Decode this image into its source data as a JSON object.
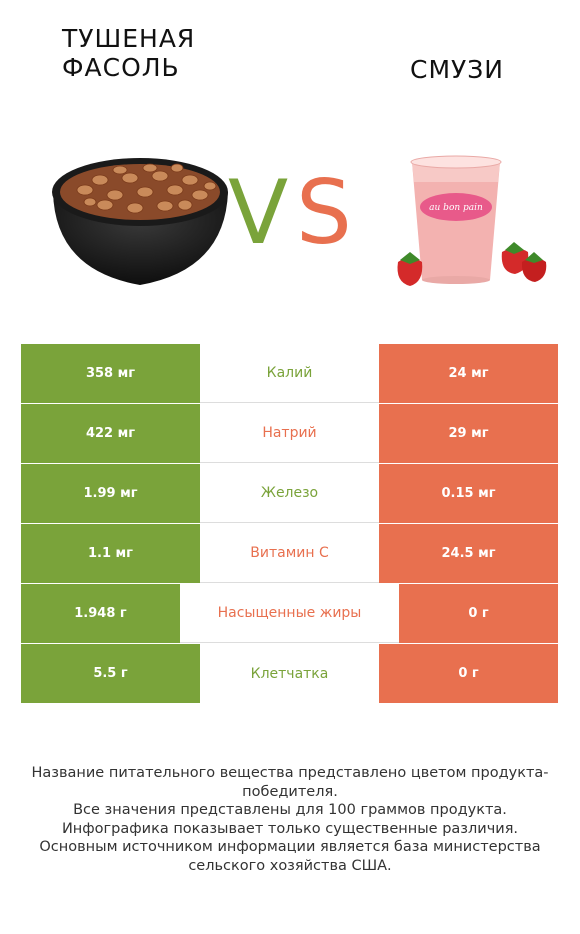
{
  "header": {
    "left_title": "ТУШЕНАЯ ФАСОЛЬ",
    "right_title": "СМУЗИ",
    "vs_v": "V",
    "vs_s": "S"
  },
  "colors": {
    "left": "#7aa33a",
    "right": "#e8704f"
  },
  "rows": [
    {
      "left": "358 мг",
      "label": "Калий",
      "right": "24 мг",
      "winner": "left"
    },
    {
      "left": "422 мг",
      "label": "Натрий",
      "right": "29 мг",
      "winner": "right"
    },
    {
      "left": "1.99 мг",
      "label": "Железо",
      "right": "0.15 мг",
      "winner": "left"
    },
    {
      "left": "1.1 мг",
      "label": "Витамин C",
      "right": "24.5 мг",
      "winner": "right"
    },
    {
      "left": "1.948 г",
      "label": "Насыщенные жиры",
      "right": "0 г",
      "winner": "right"
    },
    {
      "left": "5.5 г",
      "label": "Клетчатка",
      "right": "0 г",
      "winner": "left"
    }
  ],
  "footer": [
    "Название питательного вещества представлено цветом продукта-победителя.",
    "Все значения представлены для 100 граммов продукта.",
    "Инфографика показывает только существенные различия.",
    "Основным источником информации является база министерства сельского хозяйства США."
  ],
  "images": {
    "left": "bowl-of-beans",
    "right": "strawberry-smoothie-cup",
    "cup_brand": "au bon pain"
  }
}
